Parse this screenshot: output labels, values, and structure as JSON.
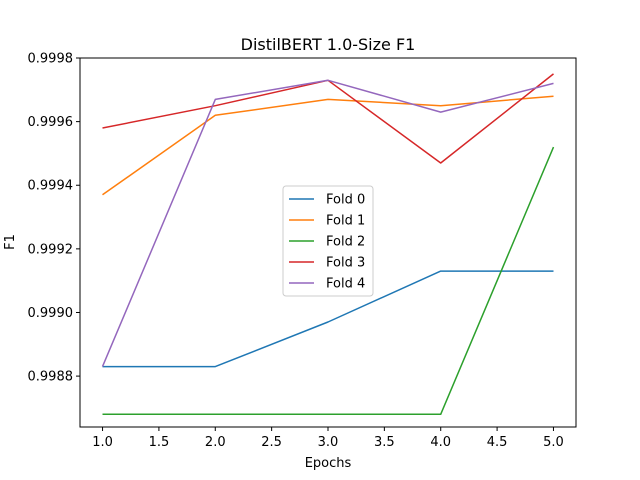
{
  "chart_data": {
    "type": "line",
    "title": "DistilBERT 1.0-Size F1",
    "xlabel": "Epochs",
    "ylabel": "F1",
    "x": [
      1.0,
      2.0,
      3.0,
      4.0,
      5.0
    ],
    "xlim": [
      0.8,
      5.2
    ],
    "ylim": [
      0.99864,
      0.9998
    ],
    "xticks": [
      1.0,
      1.5,
      2.0,
      2.5,
      3.0,
      3.5,
      4.0,
      4.5,
      5.0
    ],
    "xtick_labels": [
      "1.0",
      "1.5",
      "2.0",
      "2.5",
      "3.0",
      "3.5",
      "4.0",
      "4.5",
      "5.0"
    ],
    "yticks": [
      0.9988,
      0.999,
      0.9992,
      0.9994,
      0.9996,
      0.9998
    ],
    "ytick_labels": [
      "0.9988",
      "0.9990",
      "0.9992",
      "0.9994",
      "0.9996",
      "0.9998"
    ],
    "grid": false,
    "legend_position": "center",
    "series": [
      {
        "name": "Fold 0",
        "color": "#1f77b4",
        "values": [
          0.99883,
          0.99883,
          0.99897,
          0.99913,
          0.99913
        ]
      },
      {
        "name": "Fold 1",
        "color": "#ff7f0e",
        "values": [
          0.99937,
          0.99962,
          0.99967,
          0.99965,
          0.99968
        ]
      },
      {
        "name": "Fold 2",
        "color": "#2ca02c",
        "values": [
          0.99868,
          0.99868,
          0.99868,
          0.99868,
          0.99952
        ]
      },
      {
        "name": "Fold 3",
        "color": "#d62728",
        "values": [
          0.99958,
          0.99965,
          0.99973,
          0.99947,
          0.99975
        ]
      },
      {
        "name": "Fold 4",
        "color": "#9467bd",
        "values": [
          0.99883,
          0.99967,
          0.99973,
          0.99963,
          0.99972
        ]
      }
    ]
  }
}
